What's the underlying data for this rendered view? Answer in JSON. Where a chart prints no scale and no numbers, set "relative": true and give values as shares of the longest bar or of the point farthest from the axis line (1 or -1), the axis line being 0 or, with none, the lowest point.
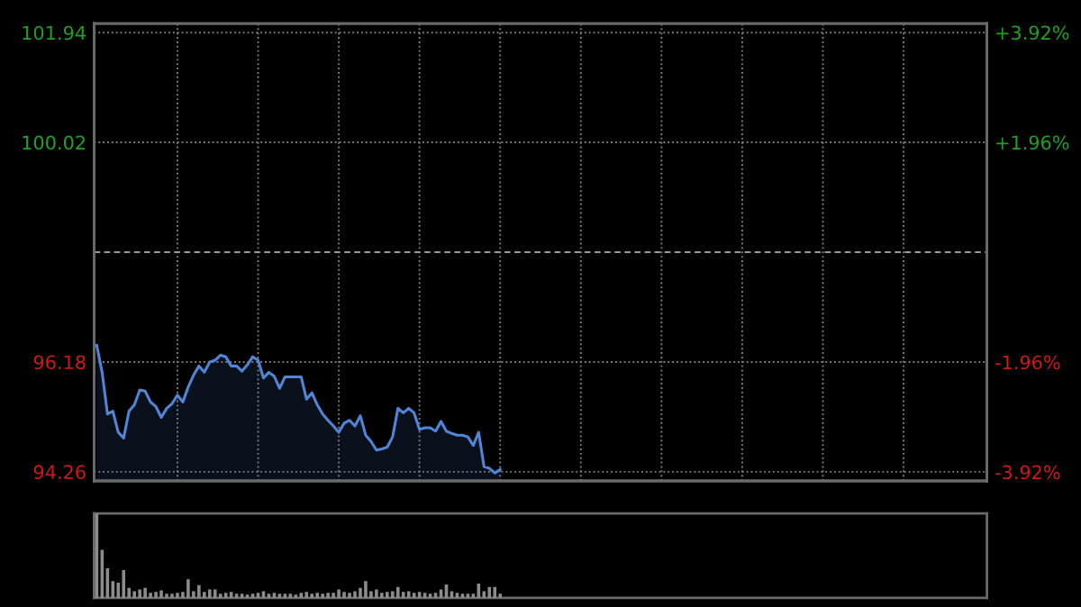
{
  "chart_data": [
    {
      "type": "line",
      "categories": [
        null,
        null,
        null,
        null,
        null,
        null,
        null,
        null,
        null,
        null,
        null,
        null,
        null,
        null,
        null,
        null,
        null,
        null,
        null,
        null,
        null,
        null,
        null,
        null,
        null,
        null,
        null,
        null,
        null,
        null,
        null,
        null,
        null,
        null,
        null,
        null,
        null,
        null,
        null,
        null,
        null,
        null,
        null,
        null,
        null,
        null,
        null,
        null,
        null,
        null,
        null,
        null,
        null,
        null,
        null,
        null,
        null,
        null,
        null,
        null,
        null,
        null,
        null,
        null,
        null,
        null,
        null,
        null,
        null,
        null,
        null,
        null,
        null,
        null,
        null,
        null,
        null,
        null,
        null,
        null,
        null,
        null,
        null,
        null,
        null,
        null,
        null,
        null,
        null,
        null,
        null,
        null,
        null,
        null,
        null,
        null,
        null,
        null,
        null,
        null,
        null,
        null,
        null,
        null,
        null,
        null,
        null,
        null,
        null,
        null,
        null,
        null,
        null,
        null,
        null,
        null,
        null,
        null,
        null,
        null,
        null,
        null,
        null,
        null,
        null,
        null,
        null,
        null,
        null,
        null,
        null,
        null,
        null,
        null,
        null,
        null,
        null,
        null,
        null,
        null,
        null,
        null,
        null,
        null,
        null,
        null,
        null,
        null,
        null,
        null,
        null,
        null,
        null,
        null,
        null,
        null,
        null,
        null,
        null,
        null,
        null,
        null,
        null,
        null,
        null,
        null
      ],
      "series": [
        {
          "color": "#4f86d8",
          "values": [
            96.47,
            96.0,
            95.27,
            95.32,
            94.95,
            94.85,
            95.32,
            95.43,
            95.69,
            95.67,
            95.48,
            95.4,
            95.21,
            95.37,
            95.45,
            95.6,
            95.48,
            95.74,
            95.95,
            96.11,
            96.0,
            96.18,
            96.21,
            96.3,
            96.27,
            96.11,
            96.11,
            96.02,
            96.13,
            96.27,
            96.21,
            95.9,
            96.0,
            95.93,
            95.72,
            95.92,
            95.92,
            95.92,
            95.92,
            95.53,
            95.64,
            95.43,
            95.27,
            95.16,
            95.06,
            94.95,
            95.11,
            95.16,
            95.06,
            95.24,
            94.9,
            94.79,
            94.64,
            94.66,
            94.69,
            94.87,
            95.37,
            95.29,
            95.37,
            95.29,
            95.0,
            95.03,
            95.03,
            94.97,
            95.14,
            94.97,
            94.93,
            94.9,
            94.9,
            94.87,
            94.72,
            94.95,
            94.35,
            94.32,
            94.24,
            94.3,
            null,
            null,
            null,
            null,
            null,
            null,
            null,
            null,
            null,
            null,
            null,
            null,
            null,
            null,
            null,
            null,
            null,
            null,
            null,
            null,
            null,
            null,
            null,
            null,
            null,
            null,
            null,
            null,
            null,
            null,
            null,
            null,
            null,
            null,
            null,
            null,
            null,
            null,
            null,
            null,
            null,
            null,
            null,
            null,
            null,
            null,
            null,
            null,
            null,
            null,
            null,
            null,
            null,
            null,
            null,
            null,
            null,
            null,
            null,
            null,
            null,
            null,
            null,
            null,
            null,
            null,
            null,
            null,
            null,
            null,
            null,
            null,
            null,
            null,
            null,
            null,
            null,
            null,
            null,
            null,
            null,
            null,
            null,
            null,
            null,
            null,
            null,
            null,
            null,
            null
          ]
        }
      ],
      "ylim": [
        94.1,
        102.1
      ],
      "yticks": [
        94.26,
        96.18,
        100.02,
        101.94
      ],
      "y2lim": [
        -4.08,
        4.08
      ],
      "y2ticks": [
        {
          "value": -3.92,
          "label": "-3.92%"
        },
        {
          "value": -1.96,
          "label": "-1.96%"
        },
        {
          "value": 1.96,
          "label": "+1.96%"
        },
        {
          "value": 3.92,
          "label": "+3.92%"
        }
      ],
      "ref_lines": [
        {
          "axis": "y",
          "value": 98.1,
          "label": null,
          "line_style": "dashed"
        }
      ],
      "grid": true,
      "line_style": "solid"
    },
    {
      "type": "bar",
      "relative": true,
      "categories": [
        null,
        null,
        null,
        null,
        null,
        null,
        null,
        null,
        null,
        null,
        null,
        null,
        null,
        null,
        null,
        null,
        null,
        null,
        null,
        null,
        null,
        null,
        null,
        null,
        null,
        null,
        null,
        null,
        null,
        null,
        null,
        null,
        null,
        null,
        null,
        null,
        null,
        null,
        null,
        null,
        null,
        null,
        null,
        null,
        null,
        null,
        null,
        null,
        null,
        null,
        null,
        null,
        null,
        null,
        null,
        null,
        null,
        null,
        null,
        null,
        null,
        null,
        null,
        null,
        null,
        null,
        null,
        null,
        null,
        null,
        null,
        null,
        null,
        null,
        null,
        null,
        null,
        null,
        null,
        null,
        null,
        null,
        null,
        null,
        null,
        null,
        null,
        null,
        null,
        null,
        null,
        null,
        null,
        null,
        null,
        null,
        null,
        null,
        null,
        null,
        null,
        null,
        null,
        null,
        null,
        null,
        null,
        null,
        null,
        null,
        null,
        null,
        null,
        null,
        null,
        null,
        null,
        null,
        null,
        null,
        null,
        null,
        null,
        null,
        null,
        null,
        null,
        null,
        null,
        null,
        null,
        null,
        null,
        null,
        null,
        null,
        null,
        null,
        null,
        null,
        null,
        null,
        null,
        null,
        null,
        null,
        null,
        null,
        null,
        null,
        null,
        null,
        null,
        null,
        null,
        null,
        null,
        null,
        null,
        null,
        null,
        null,
        null,
        null,
        null,
        null
      ],
      "values": [
        1.0,
        0.57,
        0.35,
        0.2,
        0.18,
        0.33,
        0.12,
        0.08,
        0.1,
        0.12,
        0.06,
        0.07,
        0.09,
        0.05,
        0.05,
        0.06,
        0.07,
        0.22,
        0.08,
        0.15,
        0.07,
        0.1,
        0.1,
        0.05,
        0.06,
        0.07,
        0.05,
        0.05,
        0.04,
        0.05,
        0.06,
        0.08,
        0.05,
        0.06,
        0.05,
        0.05,
        0.05,
        0.04,
        0.06,
        0.07,
        0.05,
        0.06,
        0.05,
        0.06,
        0.06,
        0.1,
        0.07,
        0.06,
        0.08,
        0.12,
        0.2,
        0.08,
        0.1,
        0.06,
        0.07,
        0.08,
        0.13,
        0.07,
        0.08,
        0.06,
        0.07,
        0.06,
        0.05,
        0.06,
        0.1,
        0.16,
        0.08,
        0.06,
        0.05,
        0.05,
        0.05,
        0.17,
        0.08,
        0.13,
        0.13,
        0.05,
        null,
        null,
        null,
        null,
        null,
        null,
        null,
        null,
        null,
        null,
        null,
        null,
        null,
        null,
        null,
        null,
        null,
        null,
        null,
        null,
        null,
        null,
        null,
        null,
        null,
        null,
        null,
        null,
        null,
        null,
        null,
        null,
        null,
        null,
        null,
        null,
        null,
        null,
        null,
        null,
        null,
        null,
        null,
        null,
        null,
        null,
        null,
        null,
        null,
        null,
        null,
        null,
        null,
        null,
        null,
        null,
        null,
        null,
        null,
        null,
        null,
        null,
        null,
        null,
        null,
        null,
        null,
        null,
        null,
        null,
        null,
        null,
        null,
        null,
        null,
        null,
        null,
        null,
        null,
        null,
        null,
        null,
        null,
        null,
        null,
        null,
        null,
        null,
        null,
        null
      ],
      "color": "#8c8c8c"
    }
  ]
}
